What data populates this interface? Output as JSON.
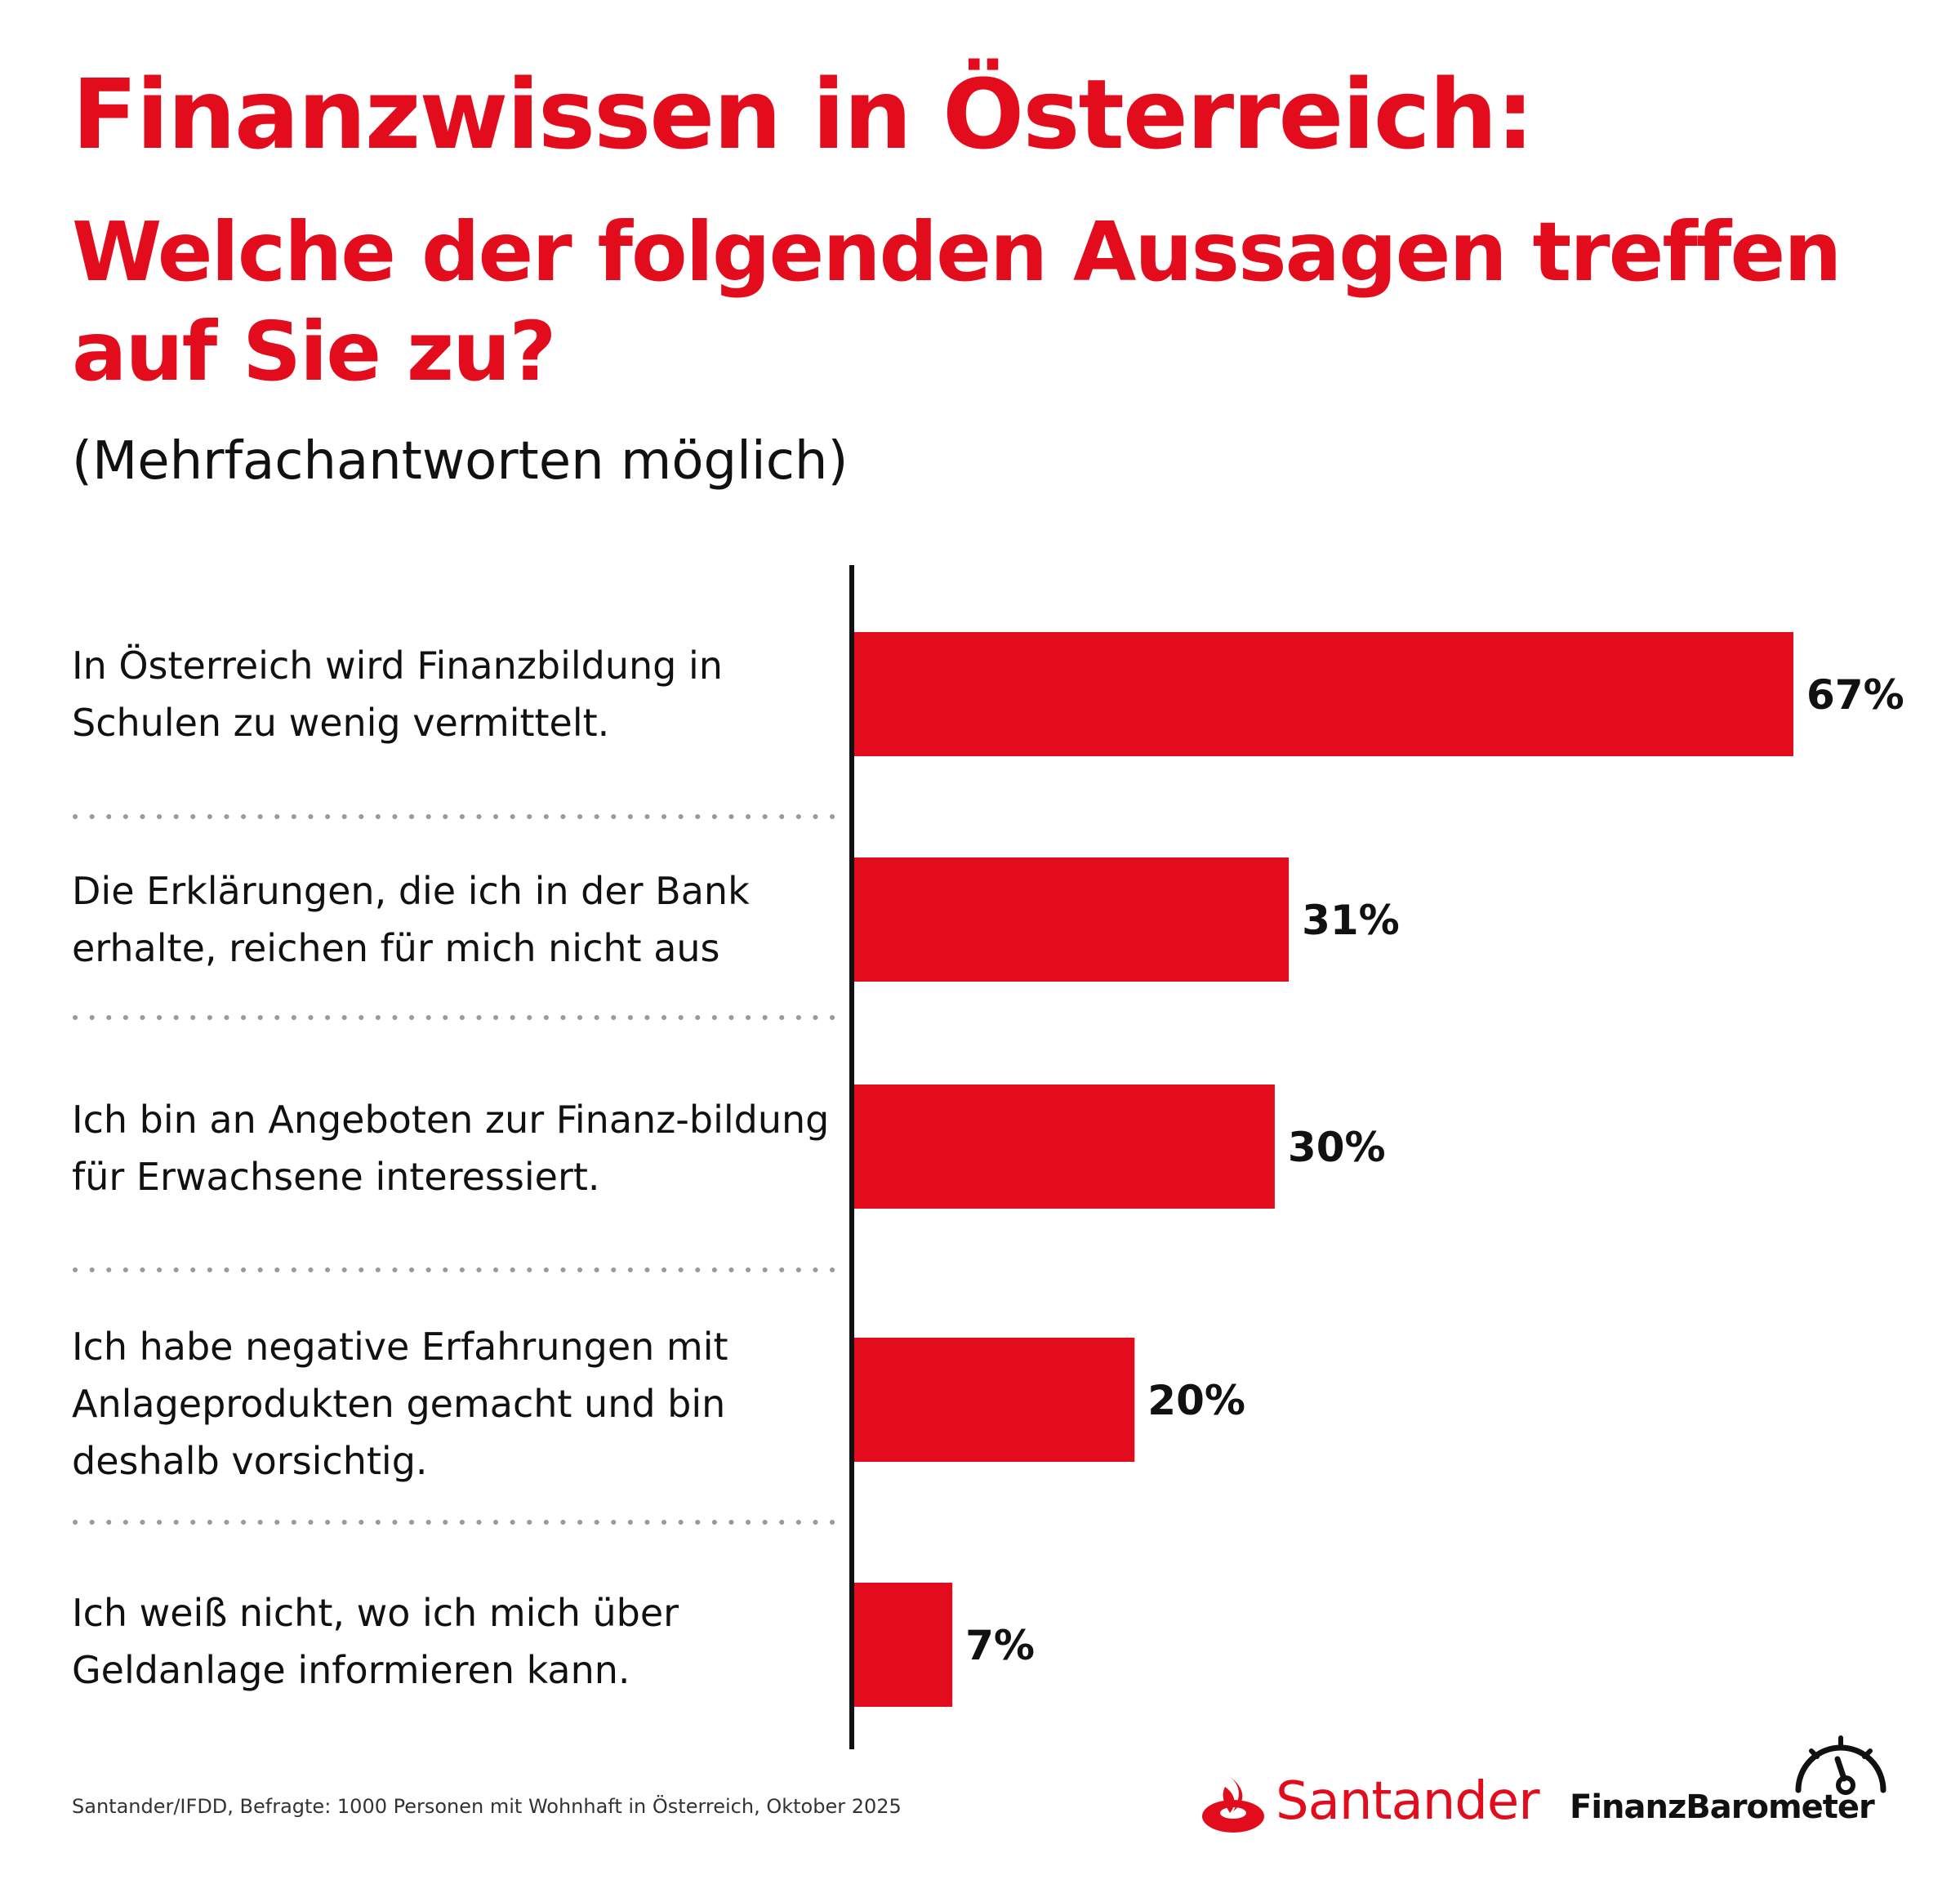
{
  "header": {
    "title": "Finanzwissen in Österreich:",
    "subtitle": "Welche der folgenden Aussagen treffen auf Sie zu?",
    "note": "(Mehrfachantworten möglich)"
  },
  "chart_data": {
    "type": "bar",
    "orientation": "horizontal",
    "categories": [
      "In Österreich wird Finanzbildung in Schulen zu wenig vermittelt.",
      "Die Erklärungen, die ich in der Bank erhalte, reichen für mich nicht aus",
      "Ich bin an Angeboten zur Finanz-bildung für Erwachsene interessiert.",
      "Ich habe negative Erfahrungen mit Anlageprodukten gemacht und bin deshalb vorsichtig.",
      "Ich weiß nicht, wo ich mich über Geldanlage informieren kann."
    ],
    "values": [
      67,
      31,
      30,
      20,
      7
    ],
    "value_labels": [
      "67%",
      "31%",
      "30%",
      "20%",
      "7%"
    ],
    "unit": "%",
    "bar_color": "#e20c1c",
    "separator_style": "dotted",
    "grid": false
  },
  "footer": {
    "source": "Santander/IFDD, Befragte: 1000 Personen mit Wohnhaft in Österreich, Oktober 2025",
    "brand_name": "Santander",
    "brand_product": "FinanzBarometer",
    "brand_color": "#e20c1c",
    "logo_icon": "santander-flame-icon",
    "gauge_icon": "speedometer-icon"
  }
}
